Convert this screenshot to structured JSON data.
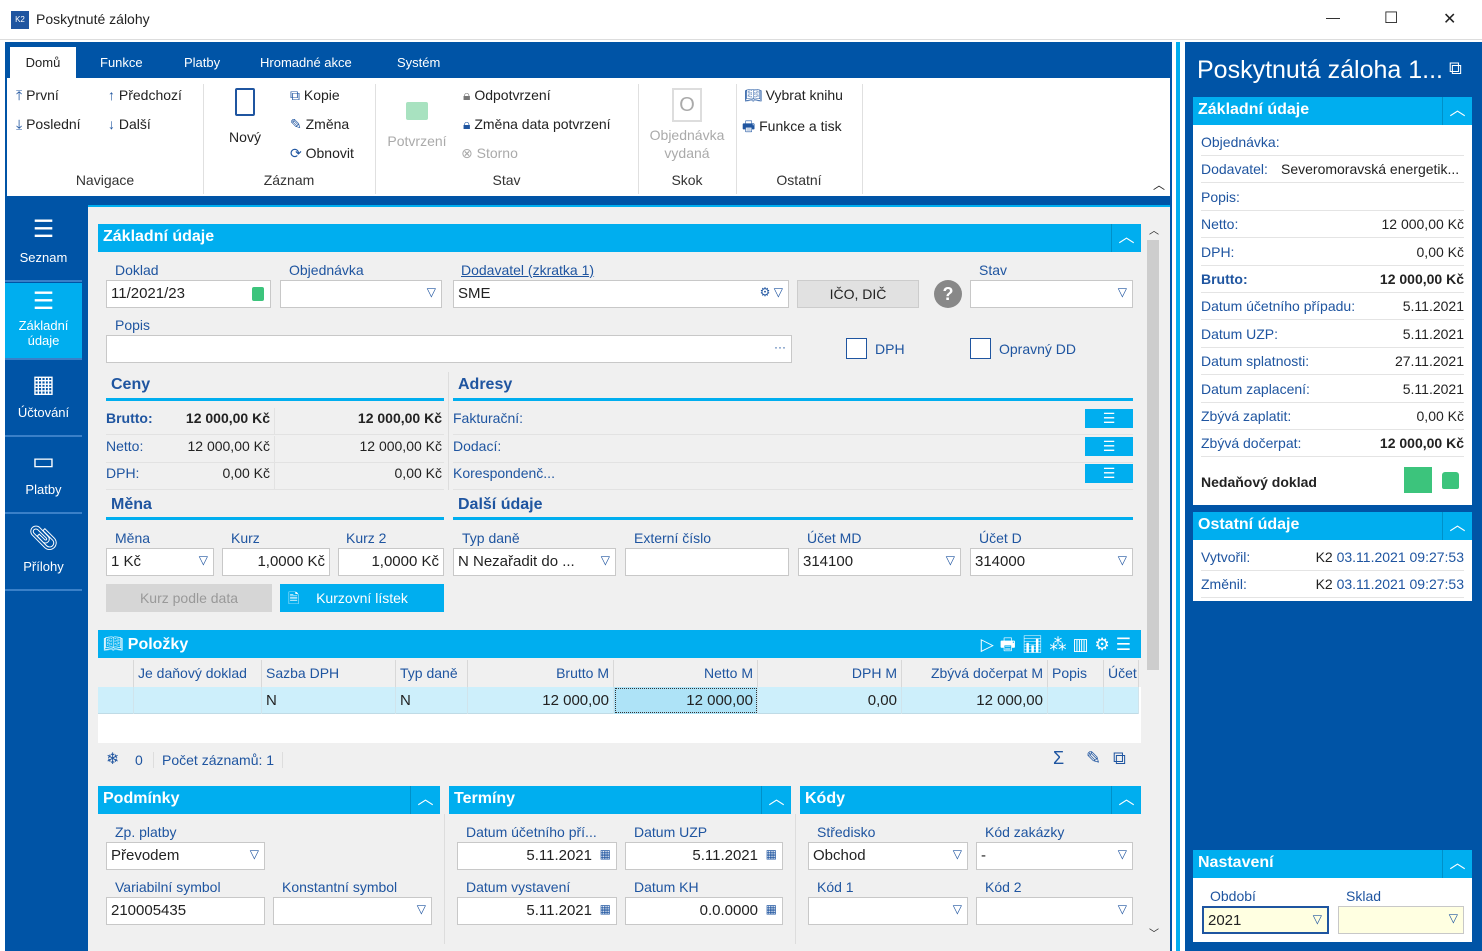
{
  "window": {
    "title": "Poskytnuté zálohy",
    "min": "—",
    "max": "☐",
    "close": "✕"
  },
  "ribbon": {
    "tabs": [
      "Domů",
      "Funkce",
      "Platby",
      "Hromadné akce",
      "Systém"
    ],
    "nav": {
      "first": "První",
      "prev": "Předchozí",
      "last": "Poslední",
      "next": "Další",
      "group": "Navigace"
    },
    "record": {
      "new": "Nový",
      "copy": "Kopie",
      "change": "Změna",
      "refresh": "Obnovit",
      "group": "Záznam"
    },
    "state": {
      "confirm": "Potvrzení",
      "unconfirm": "Odpotvrzení",
      "change_date": "Změna data potvrzení",
      "storno": "Storno",
      "group": "Stav"
    },
    "jump": {
      "order": "Objednávka vydaná",
      "group": "Skok"
    },
    "other": {
      "book": "Vybrat knihu",
      "print": "Funkce a tisk",
      "group": "Ostatní"
    }
  },
  "sidebar": {
    "items": [
      "Seznam",
      "Základní údaje",
      "Účtování",
      "Platby",
      "Přílohy"
    ]
  },
  "basic": {
    "title": "Základní údaje",
    "doklad_label": "Doklad",
    "doklad": "11/2021/23",
    "objednavka_label": "Objednávka",
    "objednavka": "",
    "dodavatel_label": "Dodavatel (zkratka 1)",
    "dodavatel": "SME",
    "ico_button": "IČO, DIČ",
    "stav_label": "Stav",
    "stav": "",
    "popis_label": "Popis",
    "popis": "",
    "popis_more": "···",
    "dph_label": "DPH",
    "opravny_label": "Opravný DD"
  },
  "prices": {
    "title": "Ceny",
    "rows": [
      {
        "label": "Brutto:",
        "v1": "12 000,00 Kč",
        "v2": "12 000,00 Kč"
      },
      {
        "label": "Netto:",
        "v1": "12 000,00 Kč",
        "v2": "12 000,00 Kč"
      },
      {
        "label": "DPH:",
        "v1": "0,00 Kč",
        "v2": "0,00 Kč"
      }
    ]
  },
  "addresses": {
    "title": "Adresy",
    "rows": [
      "Fakturační:",
      "Dodací:",
      "Korespondenč..."
    ]
  },
  "currency": {
    "title": "Měna",
    "mena_label": "Měna",
    "mena": "1 Kč",
    "kurz_label": "Kurz",
    "kurz": "1,0000 Kč",
    "kurz2_label": "Kurz 2",
    "kurz2": "1,0000 Kč",
    "btn_date": "Kurz podle data",
    "btn_list": "Kurzovní lístek"
  },
  "other": {
    "title": "Další údaje",
    "typ_label": "Typ daně",
    "typ": "N Nezařadit do ...",
    "ext_label": "Externí číslo",
    "ext": "",
    "md_label": "Účet MD",
    "md": "314100",
    "d_label": "Účet D",
    "d": "314000"
  },
  "items": {
    "title": "Položky",
    "columns": [
      "",
      "Je daňový doklad",
      "Sazba DPH",
      "Typ daně",
      "Brutto M",
      "Netto M",
      "DPH M",
      "Zbývá dočerpat M",
      "Popis",
      "Účet"
    ],
    "row": [
      "",
      "",
      "N",
      "N",
      "12 000,00",
      "12 000,00",
      "0,00",
      "12 000,00",
      "",
      ""
    ],
    "filter_count": "0",
    "count": "Počet záznamů: 1"
  },
  "conditions": {
    "title": "Podmínky",
    "zp_label": "Zp. platby",
    "zp": "Převodem",
    "vs_label": "Variabilní symbol",
    "vs": "210005435",
    "ks_label": "Konstantní symbol",
    "ks": ""
  },
  "terms": {
    "title": "Termíny",
    "ucp_label": "Datum účetního pří...",
    "ucp": "5.11.2021",
    "uzp_label": "Datum UZP",
    "uzp": "5.11.2021",
    "vyst_label": "Datum vystavení",
    "vyst": "5.11.2021",
    "kh_label": "Datum KH",
    "kh": "0.0.0000"
  },
  "codes": {
    "title": "Kódy",
    "str_label": "Středisko",
    "str": "Obchod",
    "zak_label": "Kód zakázky",
    "zak": "-",
    "k1_label": "Kód 1",
    "k1": "",
    "k2_label": "Kód 2",
    "k2": ""
  },
  "panel": {
    "title": "Poskytnutá záloha 1...",
    "basic_title": "Základní údaje",
    "rows": [
      {
        "k": "Objednávka:",
        "v": ""
      },
      {
        "k": "Dodavatel:",
        "v": "Severomoravská energetik..."
      },
      {
        "k": "Popis:",
        "v": ""
      },
      {
        "k": "Netto:",
        "v": "12 000,00 Kč"
      },
      {
        "k": "DPH:",
        "v": "0,00 Kč"
      },
      {
        "k": "Brutto:",
        "v": "12 000,00 Kč"
      },
      {
        "k": "Datum účetního případu:",
        "v": "5.11.2021"
      },
      {
        "k": "Datum UZP:",
        "v": "5.11.2021"
      },
      {
        "k": "Datum splatnosti:",
        "v": "27.11.2021"
      },
      {
        "k": "Datum zaplacení:",
        "v": "5.11.2021"
      },
      {
        "k": "Zbývá zaplatit:",
        "v": "0,00 Kč"
      },
      {
        "k": "Zbývá dočerpat:",
        "v": "12 000,00 Kč"
      }
    ],
    "nontax": "Nedaňový doklad",
    "other_title": "Ostatní údaje",
    "created_label": "Vytvořil:",
    "created_user": "K2",
    "created": "03.11.2021 09:27:53",
    "changed_label": "Změnil:",
    "changed_user": "K2",
    "changed": "03.11.2021 09:27:53",
    "settings_title": "Nastavení",
    "period_label": "Období",
    "period": "2021",
    "store_label": "Sklad",
    "store": ""
  },
  "colors": {
    "brand": "#0054a6",
    "accent": "#00aeef",
    "status_green": "#3cc47c"
  }
}
